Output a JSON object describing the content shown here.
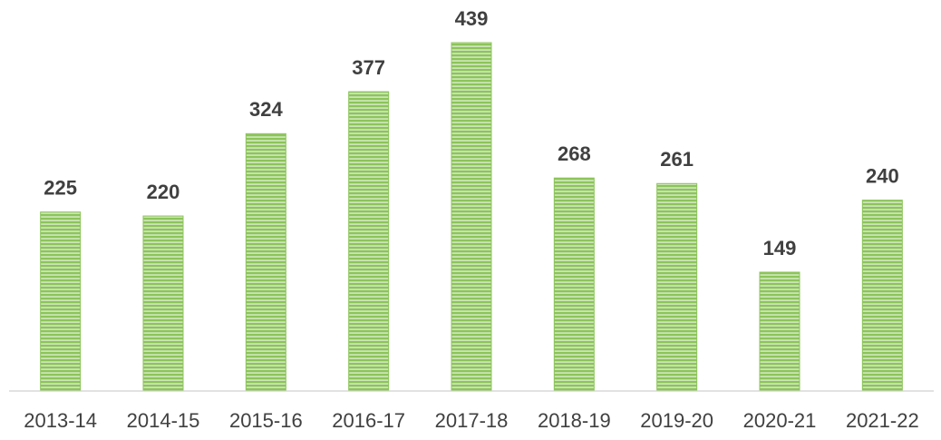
{
  "chart_data": {
    "type": "bar",
    "categories": [
      "2013-14",
      "2014-15",
      "2015-16",
      "2016-17",
      "2017-18",
      "2018-19",
      "2019-20",
      "2020-21",
      "2021-22"
    ],
    "values": [
      225,
      220,
      324,
      377,
      439,
      268,
      261,
      149,
      240
    ],
    "color": "#8cc45a"
  }
}
